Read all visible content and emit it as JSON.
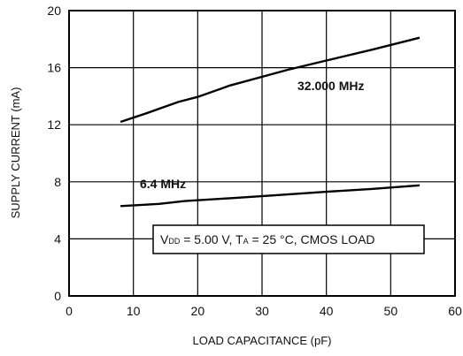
{
  "chart_data": {
    "type": "line",
    "title": "",
    "xlabel": "LOAD CAPACITANCE (pF)",
    "ylabel": "SUPPLY CURRENT (mA)",
    "xlim": [
      0,
      60
    ],
    "ylim": [
      0,
      20
    ],
    "xticks": [
      0,
      10,
      20,
      30,
      40,
      50,
      60
    ],
    "yticks": [
      0,
      4,
      8,
      12,
      16,
      20
    ],
    "grid": true,
    "legend": "none",
    "series": [
      {
        "name": "32.000 MHz",
        "x": [
          8,
          12,
          17,
          20,
          25,
          34,
          40,
          47,
          54.5
        ],
        "y": [
          12.2,
          12.8,
          13.6,
          13.95,
          14.75,
          15.85,
          16.5,
          17.25,
          18.1
        ]
      },
      {
        "name": "6.4 MHz",
        "x": [
          8,
          14,
          18,
          25,
          32,
          40,
          47,
          54.5
        ],
        "y": [
          6.3,
          6.45,
          6.65,
          6.85,
          7.05,
          7.3,
          7.5,
          7.75
        ]
      }
    ],
    "annotation": {
      "prefix": "V",
      "vdd_sub": "DD",
      "vdd_value": " = 5.00 V, T",
      "ta_sub": "A",
      "rest": " = 25 °C, CMOS LOAD"
    }
  }
}
